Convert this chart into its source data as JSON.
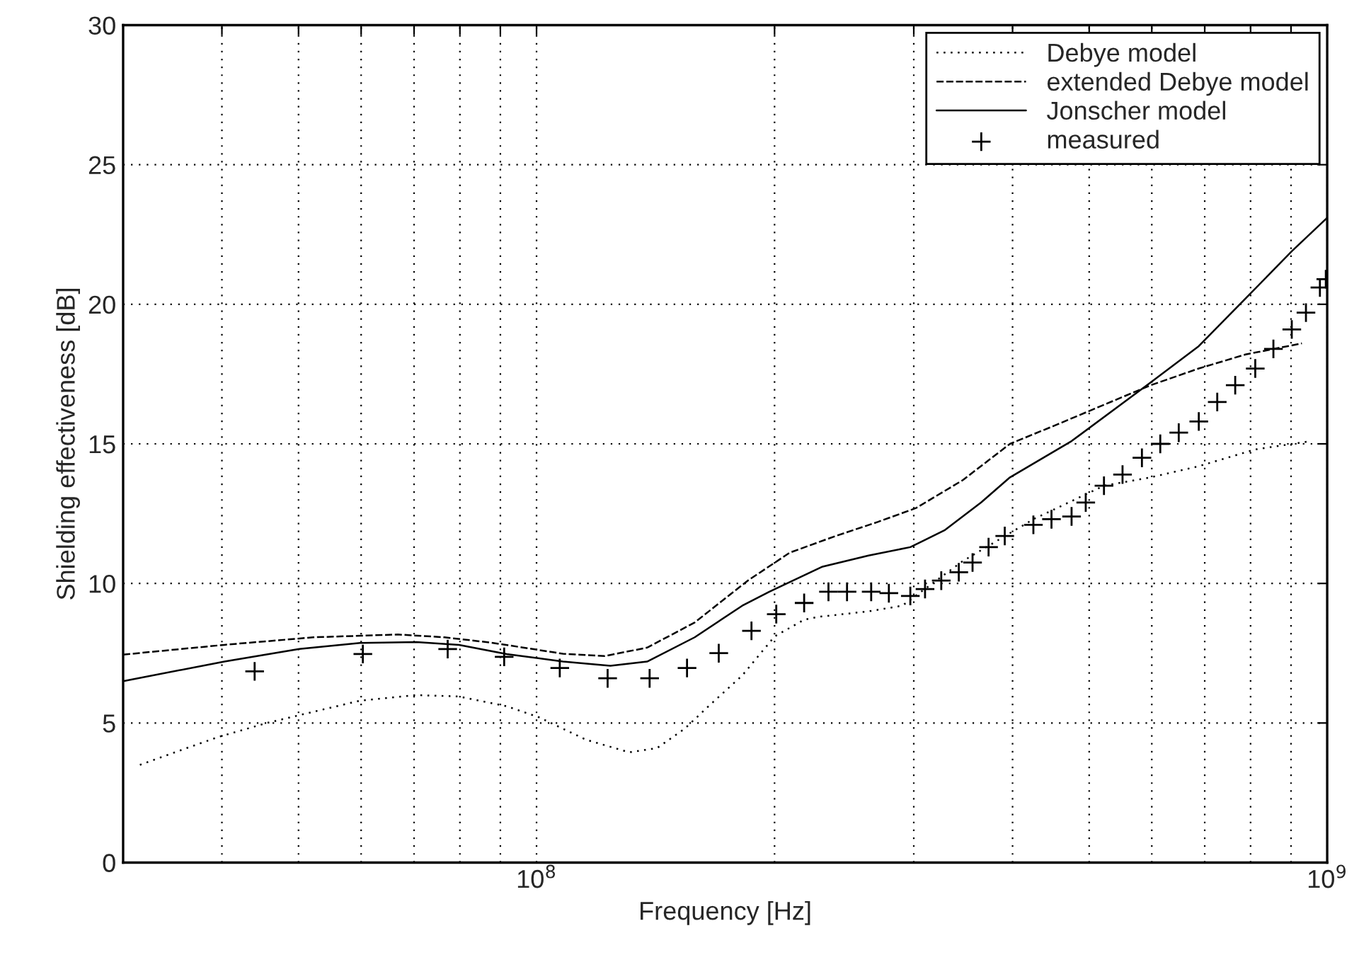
{
  "chart_data": {
    "type": "line",
    "xlabel": "Frequency [Hz]",
    "ylabel": "Shielding effectiveness [dB]",
    "log": "x",
    "xlim": [
      30000000.0,
      1000000000.0
    ],
    "xticks": [
      {
        "value": 40000000.0,
        "label": null
      },
      {
        "value": 50000000.0,
        "label": null
      },
      {
        "value": 60000000.0,
        "label": null
      },
      {
        "value": 70000000.0,
        "label": null
      },
      {
        "value": 80000000.0,
        "label": null
      },
      {
        "value": 90000000.0,
        "label": null
      },
      {
        "value": 100000000.0,
        "label": "10$^{8}$"
      },
      {
        "value": 200000000.0,
        "label": null
      },
      {
        "value": 300000000.0,
        "label": null
      },
      {
        "value": 400000000.0,
        "label": null
      },
      {
        "value": 500000000.0,
        "label": null
      },
      {
        "value": 600000000.0,
        "label": null
      },
      {
        "value": 700000000.0,
        "label": null
      },
      {
        "value": 800000000.0,
        "label": null
      },
      {
        "value": 900000000.0,
        "label": null
      },
      {
        "value": 1000000000.0,
        "label": "10$^{9}$"
      }
    ],
    "ylim": [
      0,
      30
    ],
    "yticks": [
      0,
      5,
      10,
      15,
      20,
      25,
      30
    ],
    "grid": true,
    "legend": "top right",
    "series": [
      {
        "name": "Debye model",
        "color": "#000000",
        "line_style": "dotted",
        "x": [
          31500000.0,
          36100000.0,
          39600000.0,
          45600000.0,
          52200000.0,
          59800000.0,
          70500000.0,
          79800000.0,
          91700000.0,
          100800000.0,
          115500000.0,
          131000000.0,
          142000000.0,
          154000000.0,
          165000000.0,
          182000000.0,
          200000000.0,
          218000000.0,
          227000000.0,
          263000000.0,
          290000000.0,
          346000000.0,
          425000000.0,
          522000000.0,
          598000000.0,
          688000000.0,
          811000000.0,
          955000000.0
        ],
        "values": [
          3.5,
          4.1,
          4.5,
          5.0,
          5.4,
          5.8,
          6.0,
          5.95,
          5.6,
          5.2,
          4.4,
          3.95,
          4.1,
          4.8,
          5.6,
          6.7,
          8.1,
          8.7,
          8.8,
          9.0,
          9.2,
          10.8,
          12.3,
          13.5,
          13.8,
          14.2,
          14.8,
          15.1
        ]
      },
      {
        "name": "extended Debye model",
        "color": "#000000",
        "line_style": "dashed",
        "x": [
          30000000.0,
          40300000.0,
          52200000.0,
          66800000.0,
          76500000.0,
          88100000.0,
          108000000.0,
          122000000.0,
          138000000.0,
          158500000.0,
          185000000.0,
          209000000.0,
          239000000.0,
          270000000.0,
          302000000.0,
          346000000.0,
          397000000.0,
          456000000.0,
          522000000.0,
          598000000.0,
          688000000.0,
          788000000.0,
          929000000.0
        ],
        "values": [
          7.45,
          7.8,
          8.07,
          8.17,
          8.07,
          7.87,
          7.48,
          7.4,
          7.7,
          8.6,
          10.1,
          11.1,
          11.7,
          12.2,
          12.7,
          13.7,
          15.0,
          15.7,
          16.4,
          17.1,
          17.7,
          18.2,
          18.6
        ]
      },
      {
        "name": "Jonscher model",
        "color": "#000000",
        "line_style": "solid",
        "x": [
          30000000.0,
          40300000.0,
          50100000.0,
          59800000.0,
          70500000.0,
          79800000.0,
          91700000.0,
          108000000.0,
          124000000.0,
          138000000.0,
          158500000.0,
          182000000.0,
          197000000.0,
          230000000.0,
          263000000.0,
          297000000.0,
          328000000.0,
          365000000.0,
          397000000.0,
          475000000.0,
          598000000.0,
          688000000.0,
          788000000.0,
          902000000.0,
          1000000000.0
        ],
        "values": [
          6.5,
          7.2,
          7.65,
          7.87,
          7.9,
          7.8,
          7.47,
          7.2,
          7.05,
          7.2,
          8.07,
          9.2,
          9.7,
          10.6,
          11.0,
          11.3,
          11.9,
          12.9,
          13.8,
          15.1,
          17.2,
          18.5,
          20.2,
          21.9,
          23.1
        ]
      },
      {
        "name": "measured",
        "type": "scatter",
        "marker": "cross",
        "color": "#000000",
        "x": [
          44000000.0,
          60300000.0,
          77200000.0,
          91000000.0,
          107000000.0,
          123000000.0,
          139000000.0,
          155000000.0,
          170000000.0,
          187000000.0,
          201000000.0,
          218000000.0,
          234000000.0,
          247000000.0,
          265000000.0,
          279000000.0,
          297000000.0,
          310000000.0,
          325000000.0,
          342000000.0,
          356000000.0,
          373000000.0,
          391000000.0,
          425000000.0,
          448000000.0,
          475000000.0,
          495000000.0,
          522000000.0,
          551000000.0,
          583000000.0,
          615000000.0,
          649000000.0,
          688000000.0,
          726000000.0,
          765000000.0,
          811000000.0,
          855000000.0,
          902000000.0,
          940000000.0,
          979000000.0,
          996000000.0
        ],
        "values": [
          6.85,
          7.47,
          7.65,
          7.37,
          6.97,
          6.6,
          6.6,
          6.97,
          7.5,
          8.3,
          8.9,
          9.3,
          9.7,
          9.7,
          9.7,
          9.65,
          9.55,
          9.8,
          10.1,
          10.4,
          10.75,
          11.3,
          11.7,
          12.1,
          12.3,
          12.4,
          12.9,
          13.5,
          13.9,
          14.5,
          15.0,
          15.4,
          15.8,
          16.5,
          17.1,
          17.7,
          18.4,
          19.1,
          19.7,
          20.6,
          20.9
        ]
      }
    ]
  }
}
